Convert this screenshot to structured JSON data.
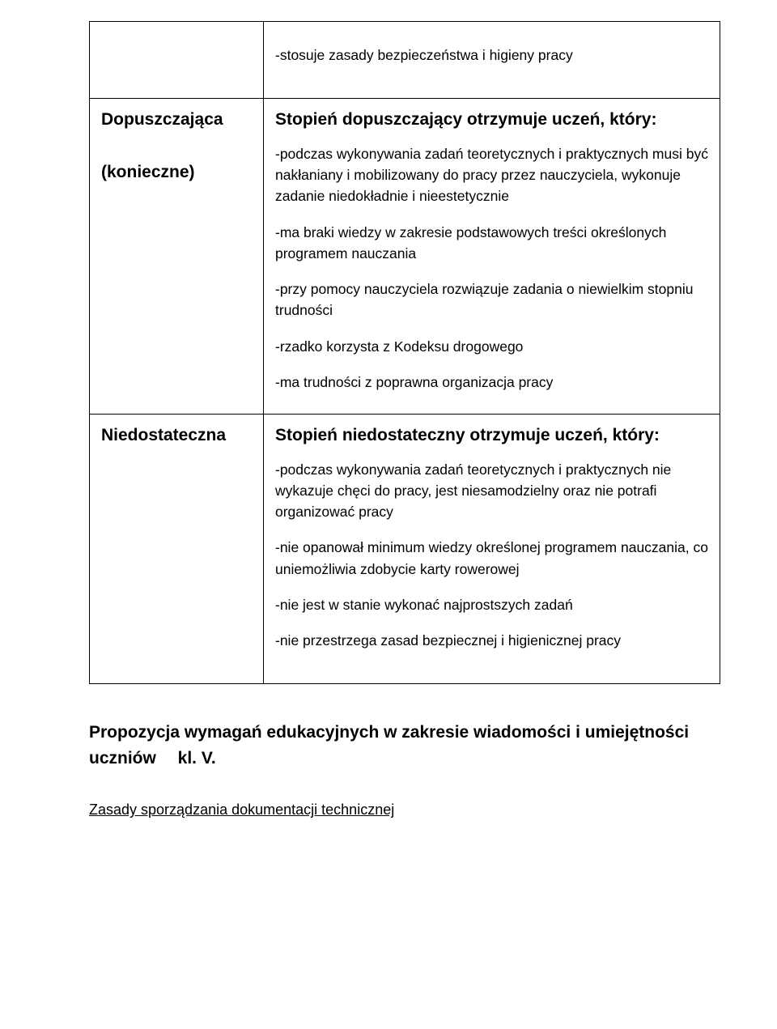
{
  "table": {
    "top_right_bullet": "-stosuje zasady bezpieczeństwa i higieny pracy",
    "rows": [
      {
        "left_lines": [
          "Dopuszczająca",
          "(konieczne)"
        ],
        "heading": "Stopień dopuszczający otrzymuje uczeń, który:",
        "bullets": [
          "-podczas wykonywania zadań teoretycznych i praktycznych musi być nakłaniany i mobilizowany do pracy przez nauczyciela, wykonuje zadanie niedokładnie i nieestetycznie",
          "-ma braki wiedzy w zakresie podstawowych treści określonych programem nauczania",
          "-przy pomocy nauczyciela rozwiązuje zadania o niewielkim stopniu trudności",
          "-rzadko korzysta z Kodeksu drogowego",
          "-ma trudności z poprawna organizacja pracy"
        ]
      },
      {
        "left_lines": [
          "Niedostateczna"
        ],
        "heading": "Stopień niedostateczny otrzymuje uczeń, który:",
        "bullets": [
          "-podczas wykonywania zadań teoretycznych i praktycznych nie wykazuje chęci do pracy, jest niesamodzielny oraz nie potrafi organizować pracy",
          "-nie opanował minimum wiedzy określonej programem nauczania, co uniemożliwia zdobycie karty rowerowej",
          "-nie jest w stanie wykonać najprostszych zadań",
          "-nie przestrzega zasad bezpiecznej i higienicznej pracy"
        ]
      }
    ]
  },
  "section_heading": "Propozycja wymagań edukacyjnych w zakresie wiadomości i umiejętności uczniów  kl. V.",
  "subsection": "Zasady sporządzania dokumentacji technicznej"
}
